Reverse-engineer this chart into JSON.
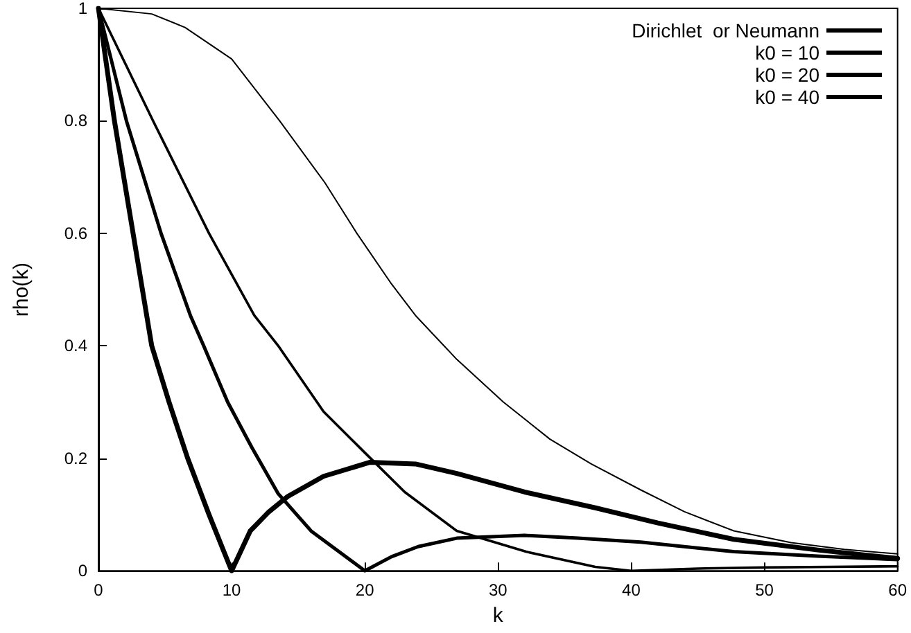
{
  "chart_data": {
    "type": "line",
    "xlabel": "k",
    "ylabel": "rho(k)",
    "xlim": [
      0,
      60
    ],
    "ylim": [
      0,
      1
    ],
    "xticks": [
      0,
      10,
      20,
      30,
      40,
      50,
      60
    ],
    "yticks": [
      0,
      0.2,
      0.4,
      0.6,
      0.8,
      1
    ],
    "grid": false,
    "legend": "top right",
    "marker": "none",
    "line_style": "solid",
    "series": [
      {
        "name": "Dirichlet  or Neumann",
        "color": "#000000",
        "x": [
          0,
          4,
          6.5,
          10,
          13.6,
          17,
          19.4,
          22,
          23.8,
          26.9,
          30.4,
          33.9,
          37,
          40.7,
          44,
          47.7,
          52,
          56,
          60
        ],
        "values": [
          1,
          0.99,
          0.966,
          0.91,
          0.8,
          0.69,
          0.6,
          0.51,
          0.454,
          0.376,
          0.3,
          0.234,
          0.19,
          0.144,
          0.105,
          0.071,
          0.05,
          0.038,
          0.03
        ]
      },
      {
        "name": "k0 = 10",
        "color": "#000000",
        "x": [
          0,
          1.2,
          2.6,
          4,
          5.3,
          6.7,
          8.3,
          10,
          11.4,
          12.8,
          14.2,
          16.9,
          20.4,
          23.8,
          26.9,
          32,
          37.3,
          42,
          47.7,
          54,
          60
        ],
        "values": [
          1,
          0.8,
          0.6,
          0.4,
          0.3,
          0.2,
          0.1,
          0,
          0.071,
          0.105,
          0.132,
          0.168,
          0.193,
          0.19,
          0.173,
          0.14,
          0.112,
          0.085,
          0.056,
          0.037,
          0.022
        ]
      },
      {
        "name": "k0 = 20",
        "color": "#000000",
        "x": [
          0,
          2.1,
          4.7,
          6.9,
          7.9,
          9.7,
          11.5,
          13.5,
          16,
          20,
          22,
          24,
          26.9,
          32,
          36,
          40.7,
          47.7,
          54,
          60
        ],
        "values": [
          1,
          0.8,
          0.6,
          0.454,
          0.4,
          0.3,
          0.22,
          0.137,
          0.07,
          0,
          0.025,
          0.043,
          0.058,
          0.063,
          0.058,
          0.051,
          0.034,
          0.026,
          0.02
        ]
      },
      {
        "name": "k0 = 40",
        "color": "#000000",
        "x": [
          0,
          4.1,
          8.3,
          11.7,
          13.5,
          16.9,
          20,
          23,
          26.9,
          32.1,
          37.3,
          40,
          45,
          50,
          55,
          60
        ],
        "values": [
          1,
          0.8,
          0.6,
          0.454,
          0.4,
          0.283,
          0.21,
          0.14,
          0.071,
          0.034,
          0.007,
          0,
          0.004,
          0.006,
          0.007,
          0.008
        ]
      }
    ]
  }
}
